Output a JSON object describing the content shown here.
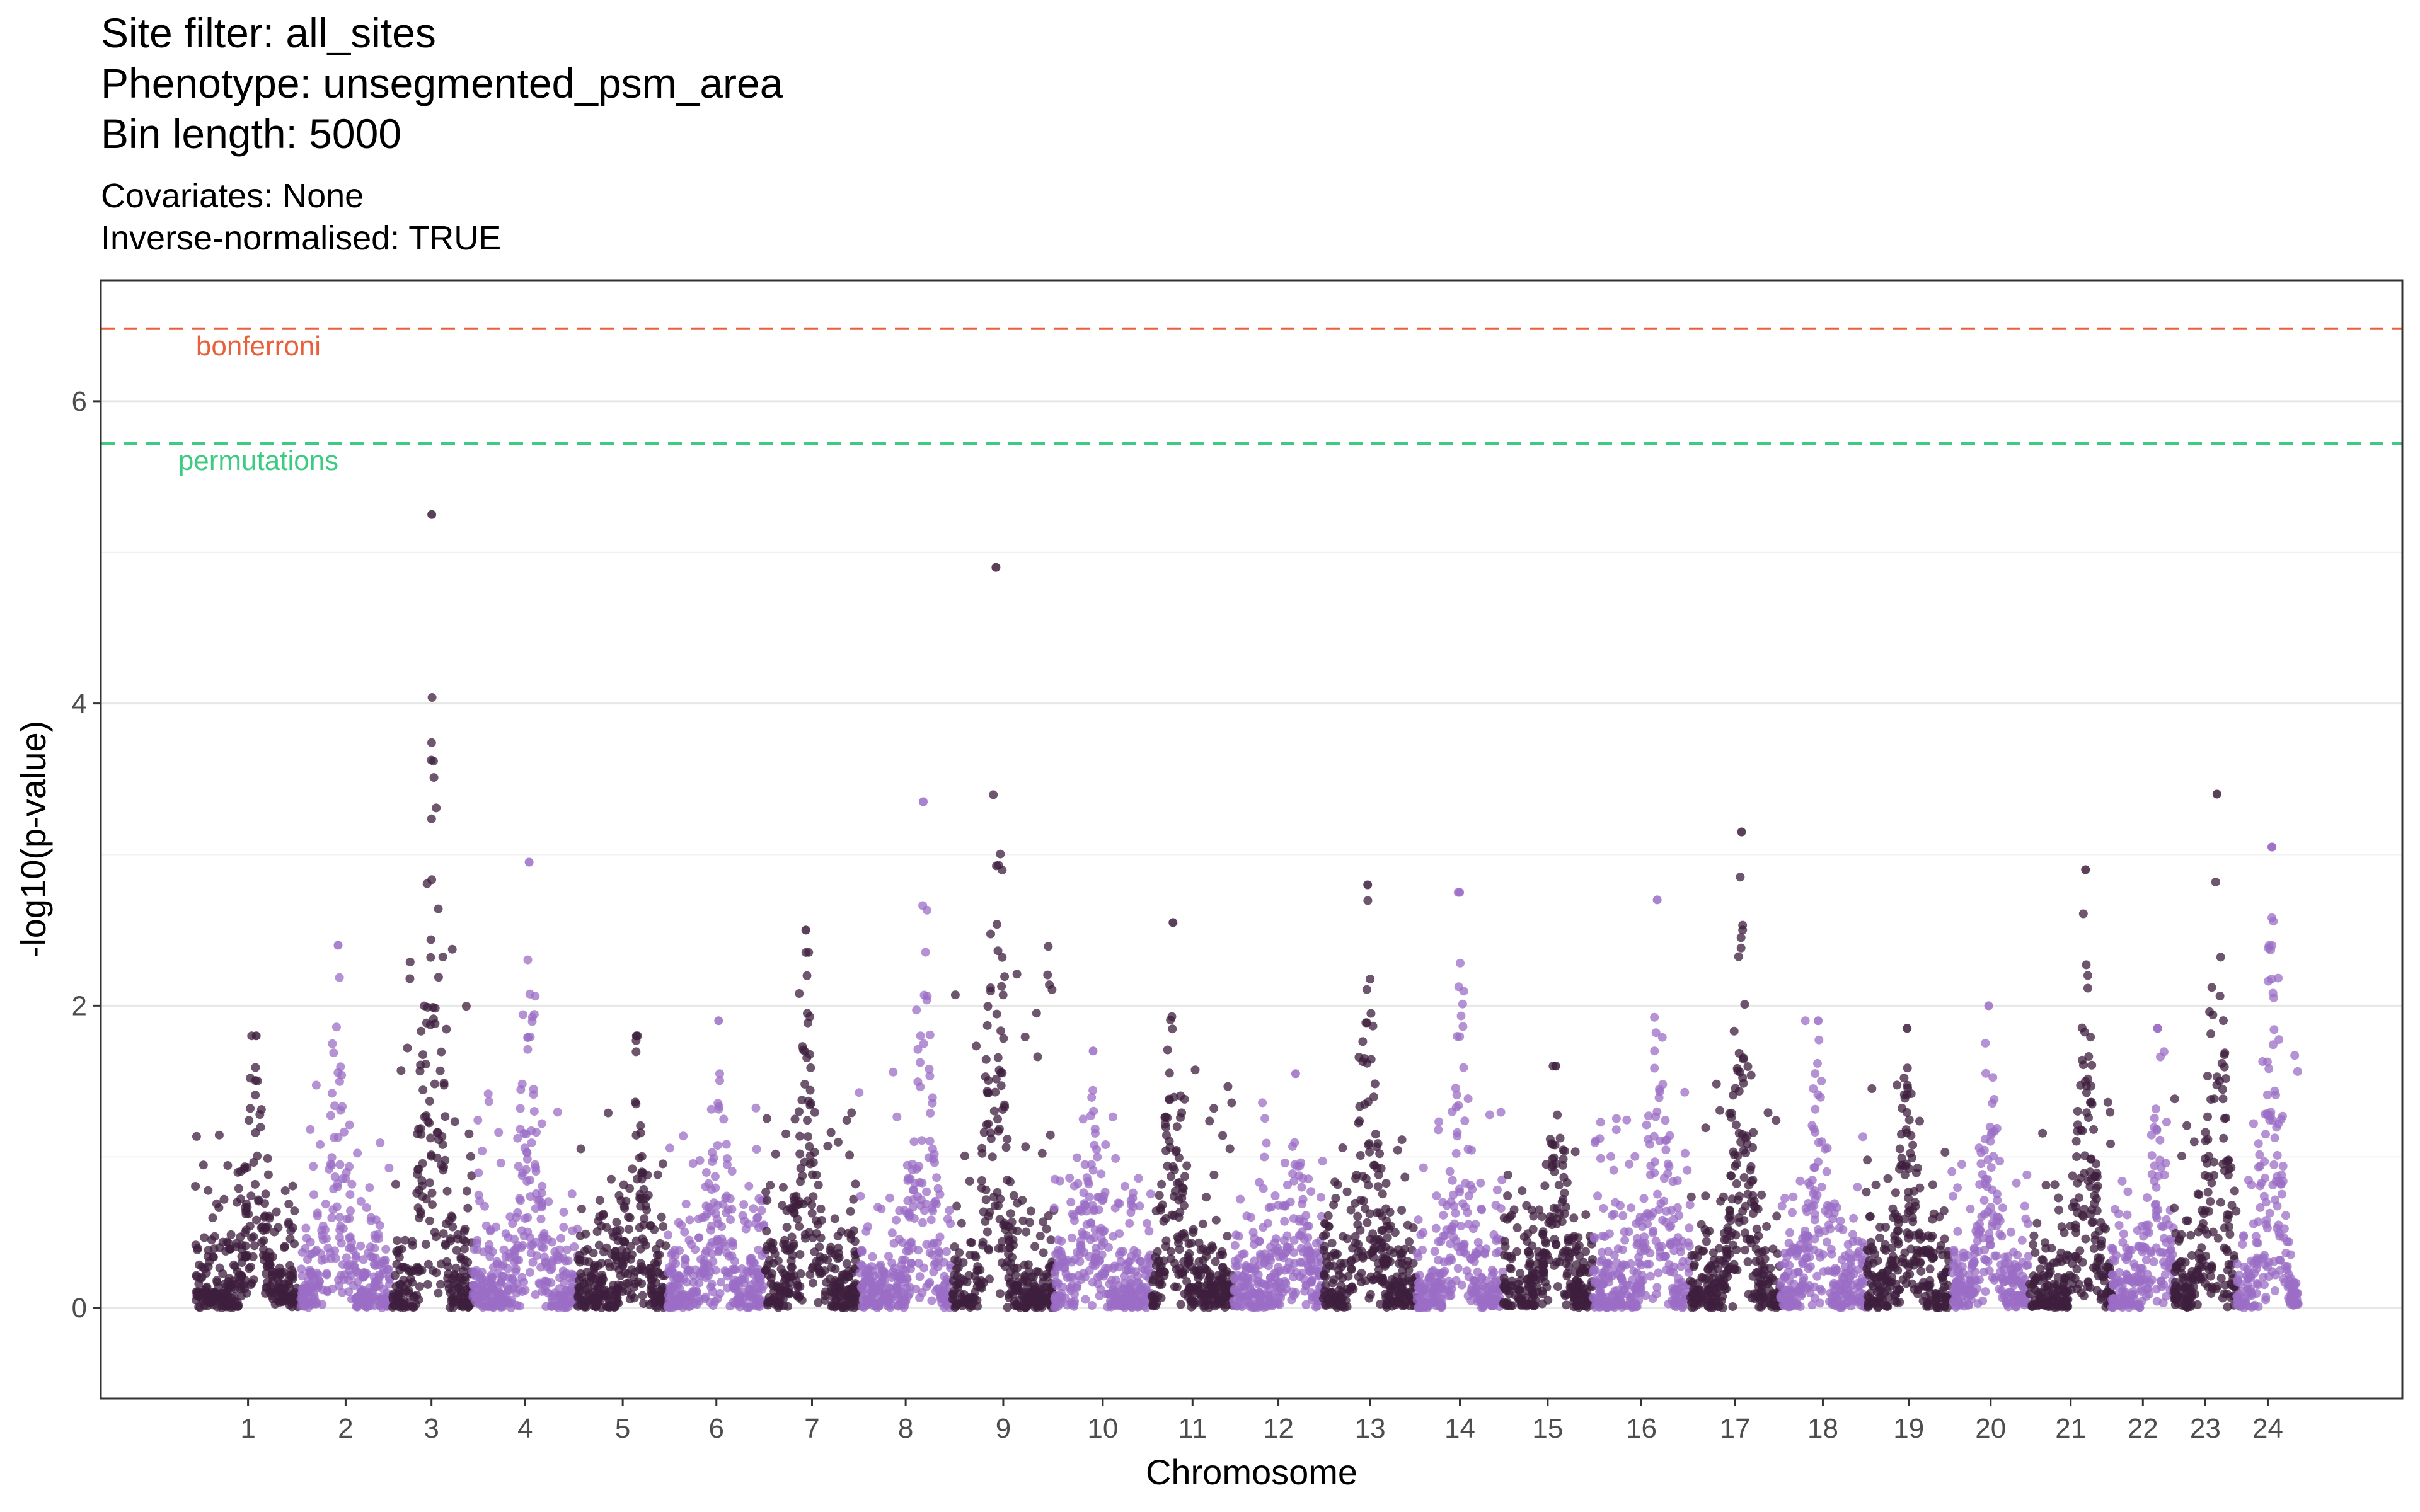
{
  "titles": {
    "line1": "Site filter: all_sites",
    "line2": "Phenotype: unsegmented_psm_area",
    "line3": "Bin length: 5000"
  },
  "subtitles": {
    "line1": "Covariates: None",
    "line2": "Inverse-normalised: TRUE"
  },
  "chart_data": {
    "type": "scatter",
    "xlabel": "Chromosome",
    "ylabel": "-log10(p-value)",
    "ylim": [
      -0.6,
      6.8
    ],
    "yticks": [
      0,
      2,
      4,
      6
    ],
    "grid": true,
    "colors": {
      "dark": "#3d1f3d",
      "light": "#9b6dc6"
    },
    "thresholds": [
      {
        "label": "bonferroni",
        "y": 6.48,
        "color": "#e8603c"
      },
      {
        "label": "permutations",
        "y": 5.72,
        "color": "#3dcb82"
      }
    ],
    "chromosomes": [
      {
        "label": "1",
        "color": "dark",
        "peak": 1.8
      },
      {
        "label": "2",
        "color": "light",
        "peak": 2.4
      },
      {
        "label": "3",
        "color": "dark",
        "peak": 5.25
      },
      {
        "label": "4",
        "color": "light",
        "peak": 2.95
      },
      {
        "label": "5",
        "color": "dark",
        "peak": 1.8
      },
      {
        "label": "6",
        "color": "light",
        "peak": 1.9
      },
      {
        "label": "7",
        "color": "dark",
        "peak": 2.5
      },
      {
        "label": "8",
        "color": "light",
        "peak": 3.35
      },
      {
        "label": "9",
        "color": "dark",
        "peak": 4.9
      },
      {
        "label": "10",
        "color": "light",
        "peak": 1.7
      },
      {
        "label": "11",
        "color": "dark",
        "peak": 2.55
      },
      {
        "label": "12",
        "color": "light",
        "peak": 1.55
      },
      {
        "label": "13",
        "color": "dark",
        "peak": 2.8
      },
      {
        "label": "14",
        "color": "light",
        "peak": 2.75
      },
      {
        "label": "15",
        "color": "dark",
        "peak": 1.6
      },
      {
        "label": "16",
        "color": "light",
        "peak": 2.7
      },
      {
        "label": "17",
        "color": "dark",
        "peak": 3.15
      },
      {
        "label": "18",
        "color": "light",
        "peak": 1.9
      },
      {
        "label": "19",
        "color": "dark",
        "peak": 1.85
      },
      {
        "label": "20",
        "color": "light",
        "peak": 2.0
      },
      {
        "label": "21",
        "color": "dark",
        "peak": 2.9
      },
      {
        "label": "22",
        "color": "light",
        "peak": 1.85
      },
      {
        "label": "23",
        "color": "dark",
        "peak": 3.4
      },
      {
        "label": "24",
        "color": "light",
        "peak": 3.05
      }
    ]
  }
}
